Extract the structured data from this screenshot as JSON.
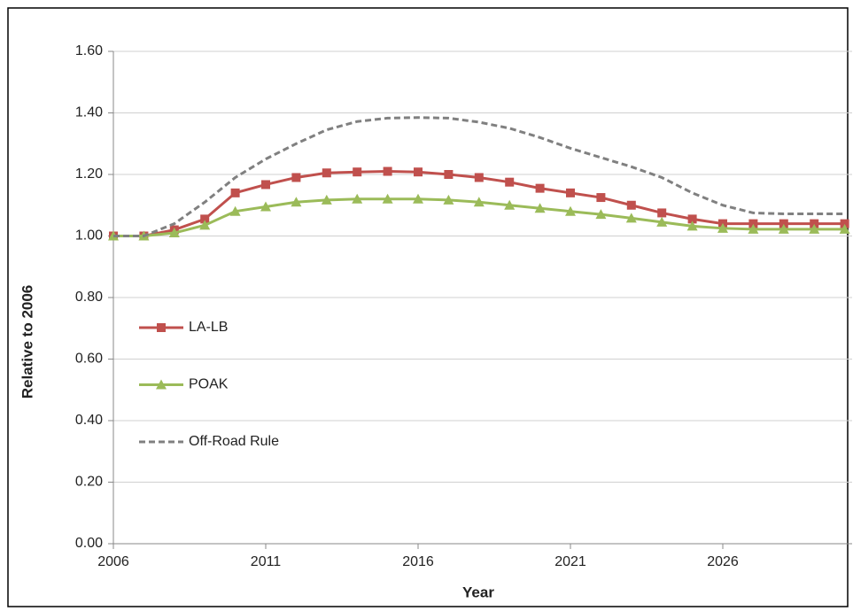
{
  "chart_data": {
    "type": "line",
    "x": [
      2006,
      2007,
      2008,
      2009,
      2010,
      2011,
      2012,
      2013,
      2014,
      2015,
      2016,
      2017,
      2018,
      2019,
      2020,
      2021,
      2022,
      2023,
      2024,
      2025,
      2026,
      2027,
      2028,
      2029,
      2030
    ],
    "series": [
      {
        "name": "LA-LB",
        "color": "#c0504d",
        "marker": "square",
        "dashed": false,
        "values": [
          1.0,
          1.0,
          1.02,
          1.055,
          1.14,
          1.167,
          1.19,
          1.205,
          1.208,
          1.21,
          1.208,
          1.2,
          1.19,
          1.175,
          1.155,
          1.14,
          1.125,
          1.1,
          1.075,
          1.055,
          1.04,
          1.04,
          1.04,
          1.04,
          1.04
        ]
      },
      {
        "name": "POAK",
        "color": "#9bbb59",
        "marker": "triangle",
        "dashed": false,
        "values": [
          1.0,
          1.0,
          1.01,
          1.035,
          1.08,
          1.095,
          1.11,
          1.117,
          1.12,
          1.12,
          1.12,
          1.117,
          1.11,
          1.1,
          1.09,
          1.08,
          1.07,
          1.058,
          1.045,
          1.032,
          1.025,
          1.022,
          1.022,
          1.022,
          1.022
        ]
      },
      {
        "name": "Off-Road Rule",
        "color": "#808080",
        "marker": "none",
        "dashed": true,
        "values": [
          1.0,
          1.0,
          1.04,
          1.11,
          1.19,
          1.25,
          1.3,
          1.345,
          1.372,
          1.383,
          1.385,
          1.383,
          1.37,
          1.35,
          1.32,
          1.285,
          1.255,
          1.225,
          1.19,
          1.14,
          1.1,
          1.075,
          1.072,
          1.072,
          1.072
        ]
      }
    ],
    "x_label": "Year",
    "y_label": "Relative to 2006",
    "xlim": [
      2006,
      2030
    ],
    "xticks": [
      2006,
      2011,
      2016,
      2021,
      2026
    ],
    "ylim": [
      0,
      1.6
    ],
    "yticks": [
      {
        "value": 0,
        "label": "0.00"
      },
      {
        "value": 0.2,
        "label": "0.20"
      },
      {
        "value": 0.4,
        "label": "0.40"
      },
      {
        "value": 0.6,
        "label": "0.60"
      },
      {
        "value": 0.8,
        "label": "0.80"
      },
      {
        "value": 1.0,
        "label": "1.00"
      },
      {
        "value": 1.2,
        "label": "1.20"
      },
      {
        "value": 1.4,
        "label": "1.40"
      },
      {
        "value": 1.6,
        "label": "1.60"
      }
    ],
    "grid": true,
    "legend": "left"
  }
}
